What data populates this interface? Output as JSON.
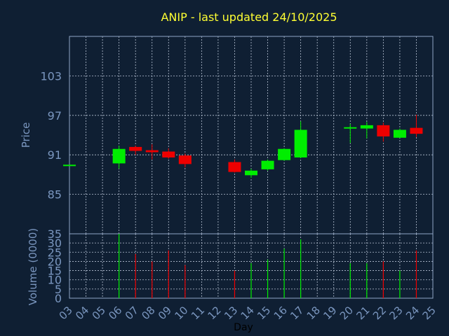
{
  "chart_data": [
    {
      "type": "candlestick",
      "title": "ANIP - last updated 24/10/2025",
      "ylabel": "Price",
      "ylim": [
        79,
        109
      ],
      "yticks": [
        85,
        91,
        97,
        103
      ],
      "grid": true,
      "candles": [
        {
          "day": 3,
          "open": 89.5,
          "high": 89.5,
          "low": 89.5,
          "close": 89.5
        },
        {
          "day": 6,
          "open": 89.7,
          "high": 92.4,
          "low": 88.9,
          "close": 91.9
        },
        {
          "day": 7,
          "open": 92.2,
          "high": 92.4,
          "low": 91.0,
          "close": 91.6
        },
        {
          "day": 8,
          "open": 91.7,
          "high": 92.6,
          "low": 90.3,
          "close": 91.4
        },
        {
          "day": 9,
          "open": 91.5,
          "high": 92.0,
          "low": 90.4,
          "close": 90.6
        },
        {
          "day": 10,
          "open": 90.9,
          "high": 91.2,
          "low": 89.1,
          "close": 89.6
        },
        {
          "day": 13,
          "open": 89.9,
          "high": 90.3,
          "low": 88.3,
          "close": 88.4
        },
        {
          "day": 14,
          "open": 87.9,
          "high": 88.9,
          "low": 87.5,
          "close": 88.6
        },
        {
          "day": 15,
          "open": 88.8,
          "high": 90.3,
          "low": 88.6,
          "close": 90.1
        },
        {
          "day": 16,
          "open": 90.2,
          "high": 92.0,
          "low": 90.1,
          "close": 91.9
        },
        {
          "day": 17,
          "open": 90.6,
          "high": 96.1,
          "low": 90.5,
          "close": 94.8
        },
        {
          "day": 20,
          "open": 95.1,
          "high": 95.7,
          "low": 92.8,
          "close": 95.2
        },
        {
          "day": 21,
          "open": 95.0,
          "high": 96.0,
          "low": 93.5,
          "close": 95.5
        },
        {
          "day": 22,
          "open": 95.5,
          "high": 95.9,
          "low": 93.0,
          "close": 93.8
        },
        {
          "day": 23,
          "open": 93.6,
          "high": 95.0,
          "low": 93.6,
          "close": 94.8
        },
        {
          "day": 24,
          "open": 95.1,
          "high": 97.1,
          "low": 93.7,
          "close": 94.2
        }
      ]
    },
    {
      "type": "bar",
      "ylabel": "Volume (0000)",
      "xlabel": "Day",
      "ylim": [
        0,
        35
      ],
      "yticks": [
        0,
        5,
        10,
        15,
        20,
        25,
        30,
        35
      ],
      "grid": true,
      "categories": [
        "03",
        "04",
        "05",
        "06",
        "07",
        "08",
        "09",
        "10",
        "11",
        "12",
        "13",
        "14",
        "15",
        "16",
        "17",
        "18",
        "19",
        "20",
        "21",
        "22",
        "23",
        "24",
        "25"
      ],
      "series": [
        {
          "values": [
            0,
            0,
            0,
            35,
            24,
            20,
            26,
            18,
            0,
            0,
            15,
            19,
            21,
            27,
            32,
            0,
            0,
            19,
            19,
            20,
            15,
            26,
            0
          ]
        }
      ]
    }
  ],
  "colors": {
    "background": "#0f1f33",
    "title": "#ffff33",
    "axis_text": "#7a96bf",
    "axis_line": "#8fa4c4",
    "grid": "#b8c3d4",
    "up": "#00ee00",
    "down": "#ee0000"
  }
}
